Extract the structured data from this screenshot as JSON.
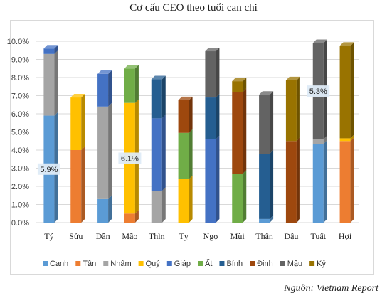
{
  "title": "Cơ cấu CEO theo tuổi can chi",
  "source": "Nguồn: Vietnam Report",
  "chart_data": {
    "type": "bar",
    "stacked": true,
    "categories": [
      "Tý",
      "Sửu",
      "Dần",
      "Mão",
      "Thìn",
      "Tỵ",
      "Ngọ",
      "Mùi",
      "Thân",
      "Dậu",
      "Tuất",
      "Hợi"
    ],
    "y_ticks": [
      "0.0%",
      "1.0%",
      "2.0%",
      "3.0%",
      "4.0%",
      "5.0%",
      "6.0%",
      "7.0%",
      "8.0%",
      "9.0%",
      "10.0%"
    ],
    "ylim": [
      0,
      10
    ],
    "unit": "%",
    "grid": true,
    "legend_position": "bottom",
    "series": [
      {
        "name": "Canh",
        "color": "#5b9bd5",
        "values": [
          5.9,
          0,
          1.3,
          0,
          0,
          0,
          0,
          0,
          0.2,
          0,
          4.35,
          0
        ]
      },
      {
        "name": "Tân",
        "color": "#ed7d31",
        "values": [
          0,
          4.0,
          0,
          0.5,
          0,
          0,
          0,
          0,
          0,
          0,
          0,
          4.5
        ]
      },
      {
        "name": "Nhâm",
        "color": "#a5a5a5",
        "values": [
          3.4,
          0,
          5.1,
          0,
          1.75,
          0,
          0,
          0,
          0,
          0,
          0.25,
          0
        ]
      },
      {
        "name": "Quý",
        "color": "#ffc000",
        "values": [
          0,
          2.9,
          0,
          6.1,
          0,
          2.4,
          0,
          0,
          0,
          0,
          0,
          0.15
        ]
      },
      {
        "name": "Giáp",
        "color": "#4472c4",
        "values": [
          0.3,
          0,
          1.8,
          0,
          4.0,
          0,
          4.6,
          0,
          0,
          0,
          0,
          0
        ]
      },
      {
        "name": "Ất",
        "color": "#70ad47",
        "values": [
          0,
          0,
          0,
          1.9,
          0,
          2.55,
          0,
          2.7,
          0,
          0,
          0,
          0
        ]
      },
      {
        "name": "Bính",
        "color": "#255e91",
        "values": [
          0,
          0,
          0,
          0,
          2.15,
          0,
          2.3,
          0,
          3.6,
          0,
          0,
          0
        ]
      },
      {
        "name": "Đinh",
        "color": "#9e480e",
        "values": [
          0,
          0,
          0,
          0,
          0,
          1.8,
          0,
          4.5,
          0,
          4.5,
          0,
          0
        ]
      },
      {
        "name": "Mậu",
        "color": "#636363",
        "values": [
          0,
          0,
          0,
          0,
          0,
          0,
          2.55,
          0,
          3.25,
          0,
          5.3,
          0
        ]
      },
      {
        "name": "Kỷ",
        "color": "#997300",
        "values": [
          0,
          0,
          0,
          0,
          0,
          0,
          0,
          0.6,
          0,
          3.35,
          0,
          5.1
        ]
      }
    ],
    "data_labels": [
      {
        "category": "Tý",
        "series": "Canh",
        "text": "5.9%"
      },
      {
        "category": "Mão",
        "series": "Quý",
        "text": "6.1%"
      },
      {
        "category": "Tuất",
        "series": "Mậu",
        "text": "5.3%"
      }
    ]
  }
}
